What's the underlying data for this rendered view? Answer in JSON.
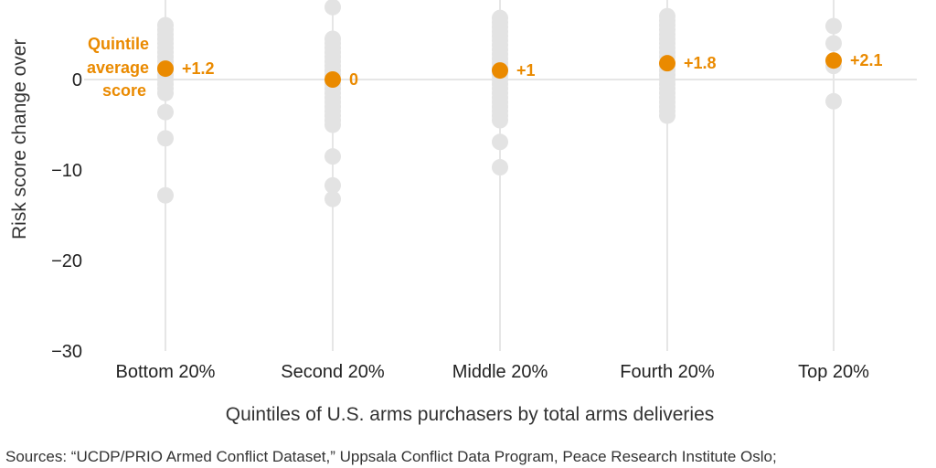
{
  "chart_data": {
    "type": "scatter",
    "title": "",
    "xlabel": "Quintiles of U.S. arms purchasers by total arms deliveries",
    "ylabel": "Risk score change over",
    "ylim": [
      -30,
      8.8
    ],
    "yticks": [
      0,
      -10,
      -20,
      -30
    ],
    "ytick_labels": [
      "0",
      "−10",
      "−20",
      "−30"
    ],
    "grid": "zero line only",
    "categories": [
      "Bottom 20%",
      "Second 20%",
      "Middle 20%",
      "Fourth 20%",
      "Top 20%"
    ],
    "points": [
      [
        6,
        5.5,
        5,
        4.5,
        4,
        3.5,
        3,
        2.5,
        2,
        1.5,
        1,
        0.5,
        0,
        -0.5,
        -1,
        -1.5,
        -3.6,
        -6.5,
        -12.8
      ],
      [
        8,
        4.5,
        4,
        3.5,
        3,
        2.5,
        2,
        1.5,
        1,
        0.5,
        -0.5,
        -1,
        -1.5,
        -2,
        -2.5,
        -3,
        -3.5,
        -4,
        -4.5,
        -5,
        -8.5,
        -11.7,
        -13.2
      ],
      [
        6.8,
        6.3,
        5.8,
        5.3,
        4.8,
        4.3,
        3.8,
        3.3,
        2.8,
        2.3,
        1.8,
        1.3,
        0.5,
        0,
        -0.5,
        -1,
        -1.5,
        -2,
        -2.5,
        -3,
        -3.5,
        -4,
        -4.5,
        -6.9,
        -9.7
      ],
      [
        7,
        6.5,
        6,
        5.5,
        5,
        4.5,
        4,
        3.5,
        3,
        2.5,
        1.5,
        1,
        0.5,
        0,
        -0.5,
        -1,
        -1.5,
        -2,
        -2.5,
        -3,
        -3.5,
        -4
      ],
      [
        5.9,
        4,
        1.5,
        -2.4
      ]
    ],
    "averages": [
      1.2,
      0,
      1,
      1.8,
      2.1
    ],
    "average_labels": [
      "+1.2",
      "0",
      "+1",
      "+1.8",
      "+2.1"
    ],
    "annotation": [
      "Quintile",
      "average",
      "score"
    ],
    "colors": {
      "points": "#E3E3E3",
      "average": "#EA8A00",
      "grid": "#E6E6E6"
    }
  },
  "source": "Sources: “UCDP/PRIO Armed Conflict Dataset,” Uppsala Conflict Data Program, Peace Research Institute Oslo;"
}
